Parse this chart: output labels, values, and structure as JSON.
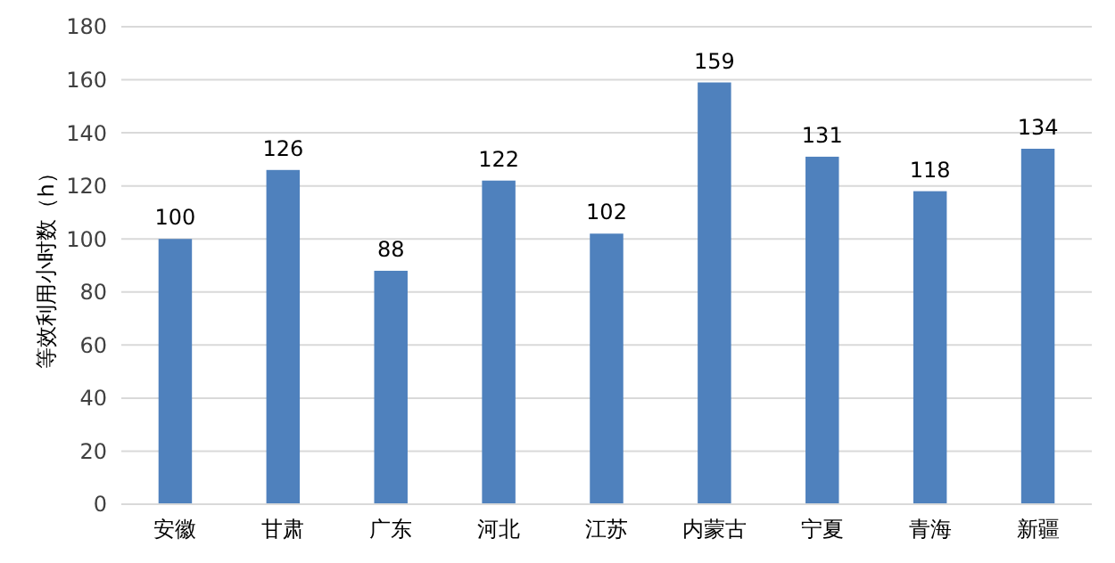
{
  "chart_data": {
    "type": "bar",
    "ylabel": "等效利用小时数（h）",
    "categories": [
      "安徽",
      "甘肃",
      "广东",
      "河北",
      "江苏",
      "内蒙古",
      "宁夏",
      "青海",
      "新疆"
    ],
    "values": [
      100,
      126,
      88,
      122,
      102,
      159,
      131,
      118,
      134
    ],
    "color": "#4f81bd",
    "ylim": [
      0,
      180
    ],
    "yticks": [
      0,
      20,
      40,
      60,
      80,
      100,
      120,
      140,
      160,
      180
    ],
    "grid": true,
    "data_labels": true
  }
}
